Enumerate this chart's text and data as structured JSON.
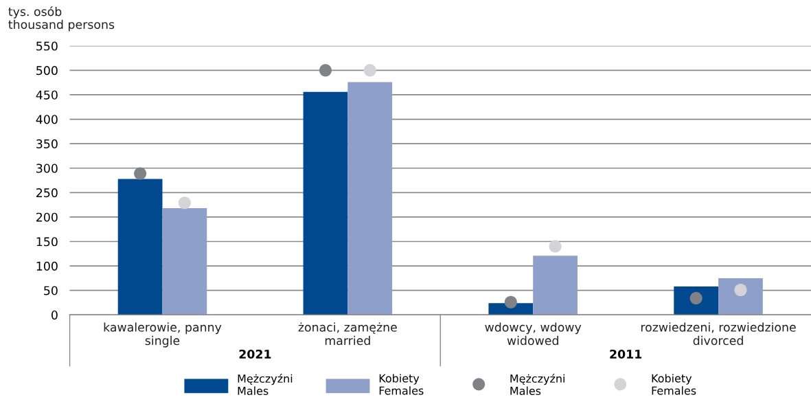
{
  "chart_data": {
    "type": "bar",
    "ylabel": "tys. osób\nthousand persons",
    "categories": [
      "kawalerowie, panny\nsingle",
      "żonaci, zamężne\nmarried",
      "wdowcy, wdowy\nwidowed",
      "rozwiedzeni, rozwiedzione\ndivorced"
    ],
    "series": [
      {
        "name": "Mężczyźni\nMales",
        "color": "#00498f",
        "values": [
          278,
          456,
          24,
          58
        ]
      },
      {
        "name": "Kobiety\nFemales",
        "color": "#8ea0c9",
        "values": [
          218,
          476,
          121,
          75
        ]
      },
      {
        "name": "Mężczyźni\nMales",
        "type": "scatter",
        "color": "#808285",
        "values": [
          289,
          500,
          26,
          34
        ]
      },
      {
        "name": "Kobiety\nFemales",
        "type": "scatter",
        "color": "#d4d4d6",
        "values": [
          229,
          500,
          140,
          51
        ]
      }
    ],
    "annotations": [
      "2021",
      "2011"
    ],
    "ylim": [
      0,
      550
    ],
    "yticks": [
      0,
      50,
      100,
      150,
      200,
      250,
      300,
      350,
      400,
      450,
      500,
      550
    ],
    "grid": "y",
    "legend": "bottom",
    "marker": "circle"
  }
}
